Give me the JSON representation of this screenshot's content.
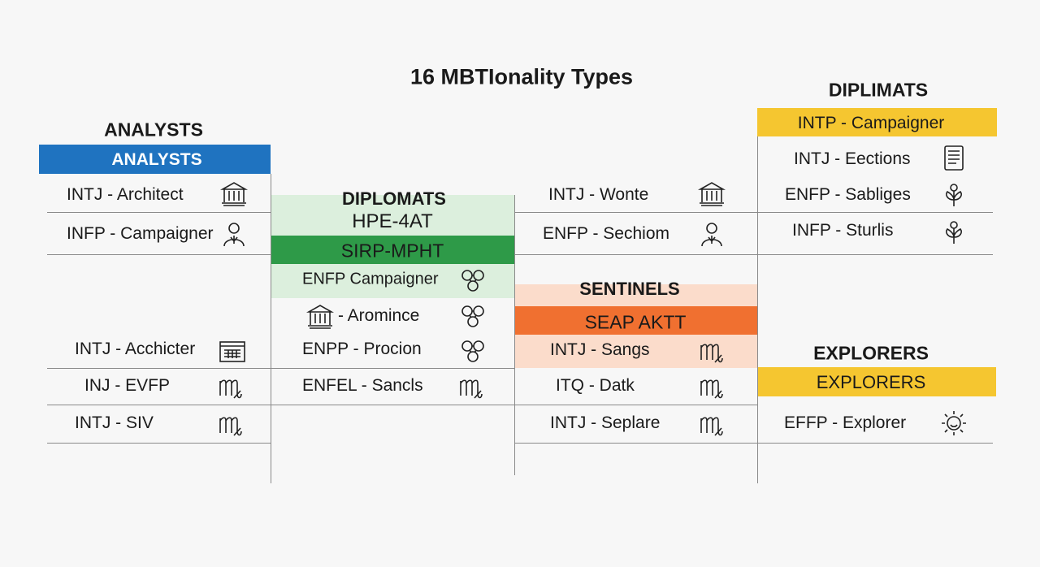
{
  "title": "16 MBTIonality Types",
  "columns": [
    {
      "heading": "ANALYSTS",
      "bar": "ANALYSTS",
      "rows": [
        "INTJ - Architect",
        "INFP - Campaigner",
        "INTJ - Acchicter",
        "INJ - EVFP",
        "INTJ - SIV"
      ]
    },
    {
      "header_lines": [
        "DIPLOMATS",
        "HPE-4AT"
      ],
      "bar": "SIRP-MPHT",
      "rows": [
        "ENFP Campaigner",
        "- Aromince",
        "ENPP - Procion",
        "ENFEL - Sancls"
      ]
    },
    {
      "rows": [
        "INTJ - Wonte",
        "ENFP - Sechiom"
      ],
      "heading2": "SENTINELS",
      "bar2": "SEAP AKTT",
      "rows2": [
        "INTJ - Sangs",
        "ITQ - Datk",
        "INTJ - Seplare"
      ]
    },
    {
      "heading": "DIPLIMATS",
      "bar": "INTP - Campaigner",
      "rows": [
        "INTJ - Eections",
        "ENFP - Sabliges",
        "INFP - Sturlis"
      ],
      "heading2": "EXPLORERS",
      "bar2": "EXPLORERS",
      "rows2": [
        "EFFP - Explorer"
      ]
    }
  ]
}
